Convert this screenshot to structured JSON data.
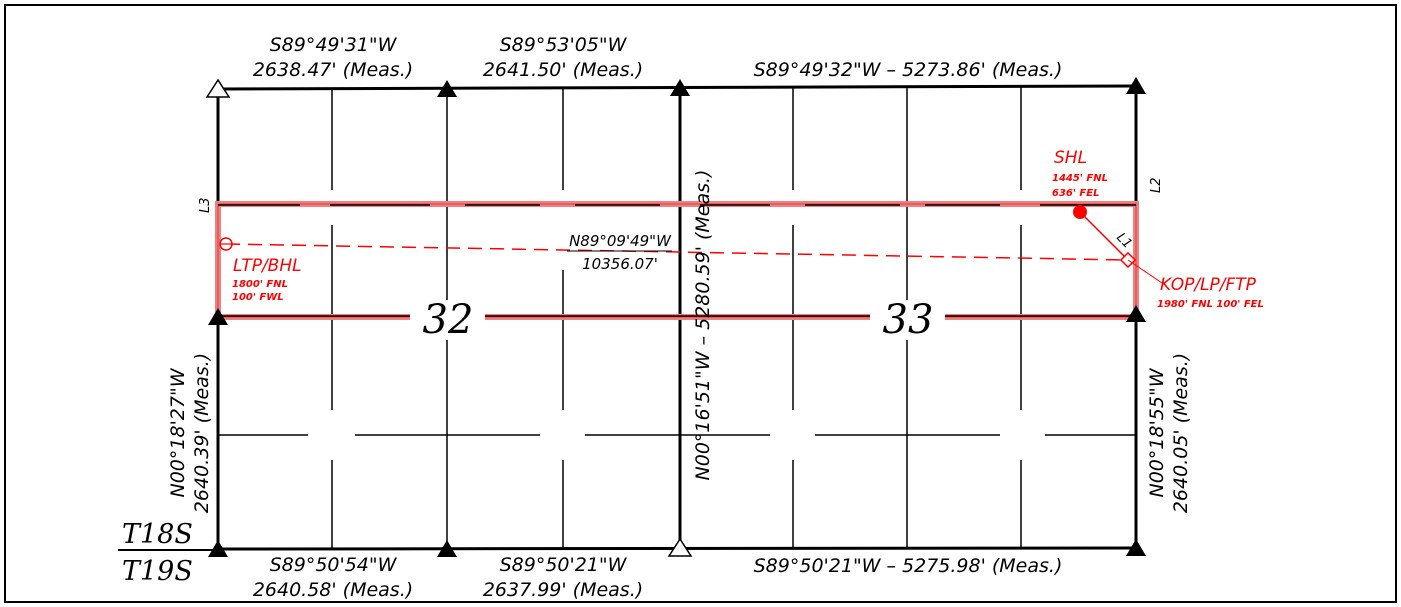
{
  "township": {
    "north": "T18S",
    "south": "T19S"
  },
  "sections": {
    "west": "32",
    "east": "33"
  },
  "boundary_calls": {
    "north_west_bearing": "S89°49'31\"W",
    "north_west_distance": "2638.47' (Meas.)",
    "north_mid_bearing": "S89°53'05\"W",
    "north_mid_distance": "2641.50' (Meas.)",
    "north_east_call": "S89°49'32\"W – 5273.86' (Meas.)",
    "south_west_bearing": "S89°50'54\"W",
    "south_west_distance": "2640.58' (Meas.)",
    "south_mid_bearing": "S89°50'21\"W",
    "south_mid_distance": "2637.99' (Meas.)",
    "south_east_call": "S89°50'21\"W – 5275.98' (Meas.)",
    "west_bearing": "N00°18'27\"W",
    "west_distance": "2640.39' (Meas.)",
    "middle_call": "N00°16'51\"W – 5280.59' (Meas.)",
    "east_bearing": "N00°18'55\"W",
    "east_distance": "2640.05' (Meas.)"
  },
  "lateral": {
    "bearing": "N89°09'49\"W",
    "distance": "10356.07'"
  },
  "points": {
    "shl": {
      "label": "SHL",
      "line1": "1445' FNL",
      "line2": "636' FEL"
    },
    "kop": {
      "label": "KOP/LP/FTP",
      "line1": "1980' FNL 100' FEL"
    },
    "ltp": {
      "label": "LTP/BHL",
      "line1": "1800' FNL",
      "line2": "100' FWL"
    }
  },
  "lot_labels": {
    "l1": "L1",
    "l2": "L2",
    "l3": "L3"
  },
  "colors": {
    "line": "#000000",
    "spacing_unit": "#f08080",
    "well_path": "#ff0000"
  }
}
